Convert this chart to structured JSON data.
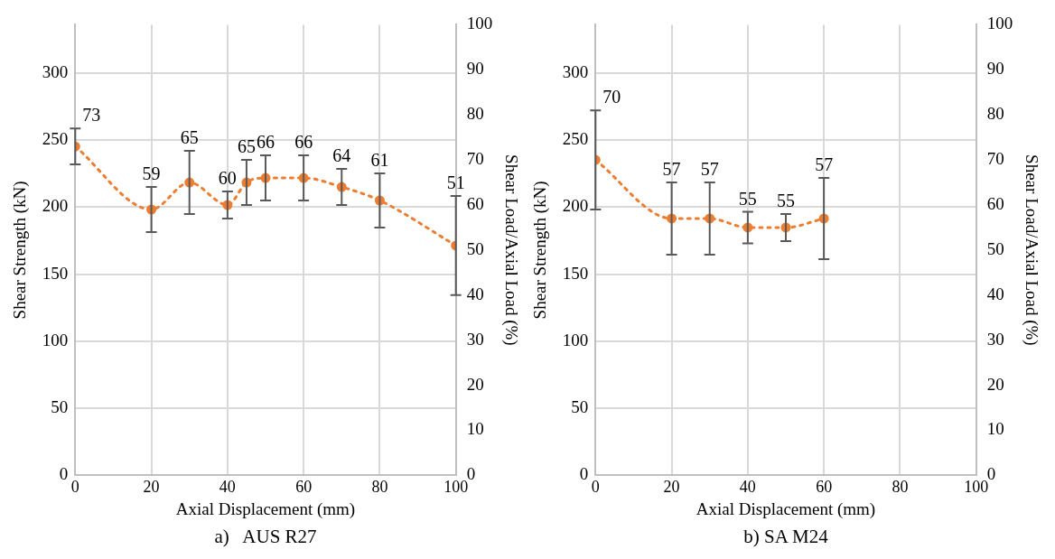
{
  "chart_data": [
    {
      "type": "line",
      "title": "a)   AUS R27",
      "xlabel": "Axial Displacement (mm)",
      "ylabel": "Shear Strength (kN)",
      "y2label": "Shear Load/Axial Load (%)",
      "x": [
        0,
        20,
        30,
        40,
        45,
        50,
        60,
        70,
        80,
        100
      ],
      "series": [
        {
          "color": "#ed7d31",
          "axis": "y2",
          "values": [
            73,
            59,
            65,
            60,
            65,
            66,
            66,
            64,
            61,
            51
          ],
          "errors": [
            4,
            5,
            7,
            3,
            5,
            5,
            5,
            4,
            6,
            11
          ]
        }
      ],
      "xlim": [
        0,
        100
      ],
      "xticks": [
        0,
        20,
        40,
        60,
        80,
        100
      ],
      "ylim": [
        0,
        336
      ],
      "yticks": [
        0,
        50,
        100,
        150,
        200,
        250,
        300
      ],
      "y2lim": [
        0,
        100
      ],
      "y2ticks": [
        0,
        10,
        20,
        30,
        40,
        50,
        60,
        70,
        80,
        90,
        100
      ],
      "grid": true,
      "marker": "circle",
      "line_style": "dotted",
      "data_labels": true
    },
    {
      "type": "line",
      "title": "b) SA M24",
      "xlabel": "Axial Displacement (mm)",
      "ylabel": "Shear Strength (kN)",
      "y2label": "Shear Load/Axial Load (%)",
      "x": [
        0,
        20,
        30,
        40,
        50,
        60
      ],
      "series": [
        {
          "color": "#ed7d31",
          "axis": "y2",
          "values": [
            70,
            57,
            57,
            55,
            55,
            57
          ],
          "errors": [
            11,
            8,
            8,
            3.5,
            3,
            9
          ]
        }
      ],
      "xlim": [
        0,
        100
      ],
      "xticks": [
        0,
        20,
        40,
        60,
        80,
        100
      ],
      "ylim": [
        0,
        336
      ],
      "yticks": [
        0,
        50,
        100,
        150,
        200,
        250,
        300
      ],
      "y2lim": [
        0,
        100
      ],
      "y2ticks": [
        0,
        10,
        20,
        30,
        40,
        50,
        60,
        70,
        80,
        90,
        100
      ],
      "grid": true,
      "marker": "circle",
      "line_style": "dotted",
      "data_labels": true
    }
  ]
}
